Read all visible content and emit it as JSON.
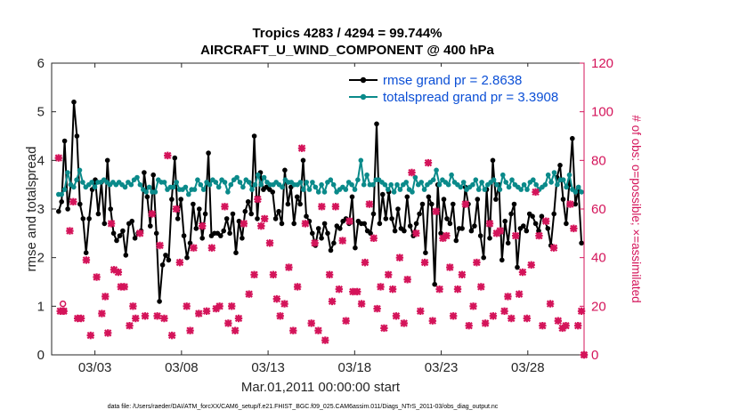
{
  "chart_data": {
    "type": "line",
    "title_line1": "Tropics 4283 / 4294 = 99.744%",
    "title_line2": "AIRCRAFT_U_WIND_COMPONENT @ 400 hPa",
    "xlabel": "Mar.01,2011 00:00:00 start",
    "ylabel_left": "rmse and totalspread",
    "ylabel_right": "# of obs: o=possible; ×=assimilated",
    "xlim": [
      0.5,
      31.25
    ],
    "ylim_left": [
      0,
      6
    ],
    "ylim_right": [
      0,
      120
    ],
    "x_ticks": [
      {
        "pos": 3,
        "label": "03/03"
      },
      {
        "pos": 8,
        "label": "03/08"
      },
      {
        "pos": 13,
        "label": "03/13"
      },
      {
        "pos": 18,
        "label": "03/18"
      },
      {
        "pos": 23,
        "label": "03/23"
      },
      {
        "pos": 28,
        "label": "03/28"
      }
    ],
    "y_ticks_left": [
      "0",
      "1",
      "2",
      "3",
      "4",
      "5",
      "6"
    ],
    "y_ticks_right": [
      "0",
      "20",
      "40",
      "60",
      "80",
      "100",
      "120"
    ],
    "series": [
      {
        "name": "rmse grand pr = 2.8638",
        "color": "#000000",
        "axis": "left",
        "values": [
          2.95,
          3.15,
          4.4,
          3.0,
          3.5,
          5.2,
          4.5,
          3.1,
          2.8,
          2.1,
          2.8,
          3.4,
          3.6,
          2.9,
          3.55,
          2.7,
          4.0,
          3.0,
          2.5,
          2.35,
          2.45,
          2.55,
          2.05,
          2.7,
          2.75,
          2.4,
          2.5,
          2.55,
          3.75,
          3.25,
          2.65,
          3.7,
          2.5,
          1.1,
          1.85,
          2.05,
          1.95,
          3.2,
          4.05,
          2.8,
          3.2,
          2.45,
          2.0,
          2.3,
          3.1,
          2.6,
          3.0,
          2.4,
          2.9,
          4.15,
          2.45,
          2.5,
          2.5,
          2.45,
          2.55,
          2.8,
          2.5,
          2.9,
          2.1,
          2.75,
          2.4,
          2.95,
          3.15,
          2.9,
          4.5,
          2.8,
          3.75,
          3.4,
          3.45,
          3.4,
          3.35,
          2.8,
          2.95,
          2.7,
          3.8,
          3.1,
          3.45,
          2.7,
          3.25,
          3.1,
          4.0,
          2.85,
          2.75,
          2.5,
          2.25,
          2.6,
          2.4,
          2.7,
          2.5,
          2.15,
          2.3,
          2.65,
          2.6,
          2.75,
          2.8,
          2.7,
          3.25,
          2.2,
          2.75,
          2.7,
          2.7,
          2.55,
          2.5,
          2.9,
          4.75,
          2.7,
          3.3,
          2.8,
          3.35,
          2.8,
          2.55,
          3.0,
          2.6,
          2.55,
          3.25,
          2.65,
          2.45,
          2.7,
          2.9,
          3.1,
          2.1,
          3.25,
          3.1,
          1.45,
          3.5,
          2.5,
          3.2,
          2.8,
          2.7,
          3.1,
          2.35,
          2.6,
          2.6,
          3.45,
          3.1,
          2.55,
          2.65,
          3.2,
          2.45,
          2.0,
          3.4,
          2.4,
          4.0,
          3.2,
          3.5,
          1.95,
          2.75,
          2.3,
          2.9,
          3.1,
          1.8,
          2.6,
          2.65,
          2.55,
          2.9,
          2.85,
          2.7,
          2.55,
          2.85,
          2.75,
          2.6,
          2.25,
          2.9,
          3.65,
          3.9,
          3.2,
          2.7,
          3.5,
          4.45,
          3.1,
          3.4,
          2.3
        ],
        "values_note": "single-row data array ok"
      },
      {
        "name": "totalspread grand pr = 3.3908",
        "color": "#0a8a8a",
        "axis": "left",
        "values": [
          3.3,
          3.3,
          3.4,
          3.75,
          3.5,
          3.45,
          3.6,
          3.8,
          3.55,
          3.45,
          3.5,
          3.55,
          3.45,
          3.55,
          3.55,
          3.6,
          3.55,
          3.5,
          3.55,
          3.5,
          3.55,
          3.5,
          3.45,
          3.55,
          3.5,
          3.6,
          3.65,
          3.5,
          3.4,
          3.35,
          3.45,
          3.35,
          3.35,
          3.6,
          3.55,
          3.55,
          3.4,
          3.45,
          3.45,
          3.55,
          3.4,
          3.4,
          3.45,
          3.3,
          3.4,
          3.4,
          3.6,
          3.5,
          3.4,
          3.55,
          3.5,
          3.6,
          3.55,
          3.45,
          3.6,
          3.55,
          3.35,
          3.5,
          3.6,
          3.65,
          3.55,
          3.45,
          3.6,
          3.55,
          3.4,
          3.5,
          3.7,
          3.5,
          3.65,
          3.55,
          3.5,
          3.5,
          3.55,
          3.5,
          3.45,
          3.6,
          3.55,
          3.55,
          3.5,
          3.5,
          3.55,
          3.4,
          3.55,
          3.4,
          3.55,
          3.45,
          3.35,
          3.5,
          3.35,
          3.55,
          3.6,
          3.5,
          3.35,
          3.4,
          3.45,
          3.4,
          3.55,
          3.5,
          3.4,
          3.6,
          4.0,
          3.5,
          3.7,
          3.5,
          3.5,
          3.6,
          3.6,
          3.55,
          3.5,
          3.4,
          3.5,
          3.35,
          3.5,
          3.4,
          3.5,
          3.55,
          3.4,
          3.35,
          3.65,
          3.5,
          3.55,
          3.4,
          3.5,
          3.55,
          3.6,
          3.8,
          3.5,
          3.6,
          3.55,
          3.5,
          3.7,
          3.55,
          3.5,
          3.45,
          3.55,
          3.4,
          3.45,
          3.5,
          3.6,
          3.4,
          3.55,
          3.4,
          3.5,
          3.55,
          3.6,
          3.5,
          3.4,
          3.7,
          3.55,
          3.45,
          3.6,
          3.5,
          3.45,
          3.4,
          3.5,
          3.4,
          3.55,
          3.6,
          3.5,
          3.4,
          3.45,
          3.5,
          3.7,
          3.55,
          3.75,
          3.5,
          3.6,
          3.6,
          3.45,
          3.7,
          3.4,
          3.35,
          3.45,
          3.35
        ]
      }
    ],
    "obs_assimilated": {
      "marker": "×",
      "color": "#d4145a",
      "axis": "right",
      "points": [
        [
          0.9,
          81
        ],
        [
          1.0,
          18
        ],
        [
          1.2,
          18
        ],
        [
          1.55,
          51
        ],
        [
          1.75,
          63
        ],
        [
          2.0,
          15
        ],
        [
          2.2,
          15
        ],
        [
          2.5,
          39
        ],
        [
          2.75,
          8
        ],
        [
          3.1,
          32
        ],
        [
          3.4,
          17
        ],
        [
          3.6,
          24
        ],
        [
          3.75,
          9
        ],
        [
          3.95,
          54
        ],
        [
          4.1,
          35
        ],
        [
          4.35,
          34
        ],
        [
          4.5,
          28
        ],
        [
          4.7,
          28
        ],
        [
          5.0,
          12
        ],
        [
          5.2,
          20
        ],
        [
          5.35,
          15
        ],
        [
          5.6,
          50
        ],
        [
          5.9,
          16
        ],
        [
          6.3,
          58
        ],
        [
          6.6,
          16
        ],
        [
          6.75,
          45
        ],
        [
          7.0,
          15
        ],
        [
          7.2,
          82
        ],
        [
          7.45,
          8
        ],
        [
          7.7,
          60
        ],
        [
          7.9,
          38
        ],
        [
          8.3,
          20
        ],
        [
          8.5,
          10
        ],
        [
          8.7,
          44
        ],
        [
          9.0,
          17
        ],
        [
          9.2,
          53
        ],
        [
          9.45,
          18
        ],
        [
          9.75,
          44
        ],
        [
          10.0,
          19
        ],
        [
          10.2,
          20
        ],
        [
          10.5,
          61
        ],
        [
          10.7,
          13
        ],
        [
          10.9,
          20
        ],
        [
          11.1,
          10
        ],
        [
          11.3,
          15
        ],
        [
          11.6,
          54
        ],
        [
          11.9,
          25
        ],
        [
          12.2,
          33
        ],
        [
          12.4,
          64
        ],
        [
          12.6,
          53
        ],
        [
          12.8,
          56
        ],
        [
          13.1,
          46
        ],
        [
          13.3,
          33
        ],
        [
          13.5,
          23
        ],
        [
          13.7,
          16
        ],
        [
          13.95,
          21
        ],
        [
          14.2,
          36
        ],
        [
          14.45,
          10
        ],
        [
          14.7,
          28
        ],
        [
          14.95,
          85
        ],
        [
          15.15,
          54
        ],
        [
          15.5,
          13
        ],
        [
          15.7,
          46
        ],
        [
          15.9,
          10
        ],
        [
          16.1,
          61
        ],
        [
          16.3,
          6
        ],
        [
          16.55,
          33
        ],
        [
          16.7,
          22
        ],
        [
          16.9,
          61
        ],
        [
          17.1,
          27
        ],
        [
          17.3,
          47
        ],
        [
          17.5,
          14
        ],
        [
          17.7,
          55
        ],
        [
          17.9,
          26
        ],
        [
          18.15,
          26
        ],
        [
          18.4,
          21
        ],
        [
          18.6,
          38
        ],
        [
          18.85,
          62
        ],
        [
          19.1,
          48
        ],
        [
          19.3,
          19
        ],
        [
          19.5,
          28
        ],
        [
          19.7,
          11
        ],
        [
          19.95,
          33
        ],
        [
          20.2,
          27
        ],
        [
          20.4,
          16
        ],
        [
          20.6,
          40
        ],
        [
          20.85,
          13
        ],
        [
          21.05,
          31
        ],
        [
          21.3,
          75
        ],
        [
          21.55,
          50
        ],
        [
          21.8,
          18
        ],
        [
          22.05,
          38
        ],
        [
          22.25,
          79
        ],
        [
          22.5,
          14
        ],
        [
          22.7,
          59
        ],
        [
          22.9,
          27
        ],
        [
          23.1,
          48
        ],
        [
          23.3,
          49
        ],
        [
          23.5,
          36
        ],
        [
          23.7,
          16
        ],
        [
          23.95,
          27
        ],
        [
          24.2,
          33
        ],
        [
          24.4,
          62
        ],
        [
          24.6,
          12
        ],
        [
          24.85,
          20
        ],
        [
          25.05,
          38
        ],
        [
          25.3,
          28
        ],
        [
          25.55,
          13
        ],
        [
          25.8,
          54
        ],
        [
          26.0,
          16
        ],
        [
          26.2,
          50
        ],
        [
          26.4,
          51
        ],
        [
          26.65,
          18
        ],
        [
          26.85,
          24
        ],
        [
          27.05,
          15
        ],
        [
          27.3,
          49
        ],
        [
          27.5,
          25
        ],
        [
          27.7,
          34
        ],
        [
          27.95,
          15
        ],
        [
          28.2,
          37
        ],
        [
          28.45,
          67
        ],
        [
          28.65,
          49
        ],
        [
          28.85,
          12
        ],
        [
          29.05,
          55
        ],
        [
          29.3,
          21
        ],
        [
          29.5,
          44
        ],
        [
          29.75,
          14
        ],
        [
          30.0,
          11
        ],
        [
          30.2,
          12
        ],
        [
          30.45,
          62
        ],
        [
          30.65,
          52
        ],
        [
          30.9,
          12
        ],
        [
          31.1,
          18
        ],
        [
          31.25,
          0
        ]
      ]
    },
    "obs_possible": {
      "marker": "o",
      "color": "#d4145a",
      "axis": "right",
      "points": [
        [
          1.15,
          21
        ],
        [
          1.2,
          18
        ],
        [
          31.25,
          0
        ]
      ]
    }
  },
  "footer": "data file: /Users/raeder/DAI/ATM_forcXX/CAM6_setup/f.e21.FHIST_BGC.f09_025.CAM6assim.011/Diags_NTrS_2011-03/obs_diag_output.nc"
}
